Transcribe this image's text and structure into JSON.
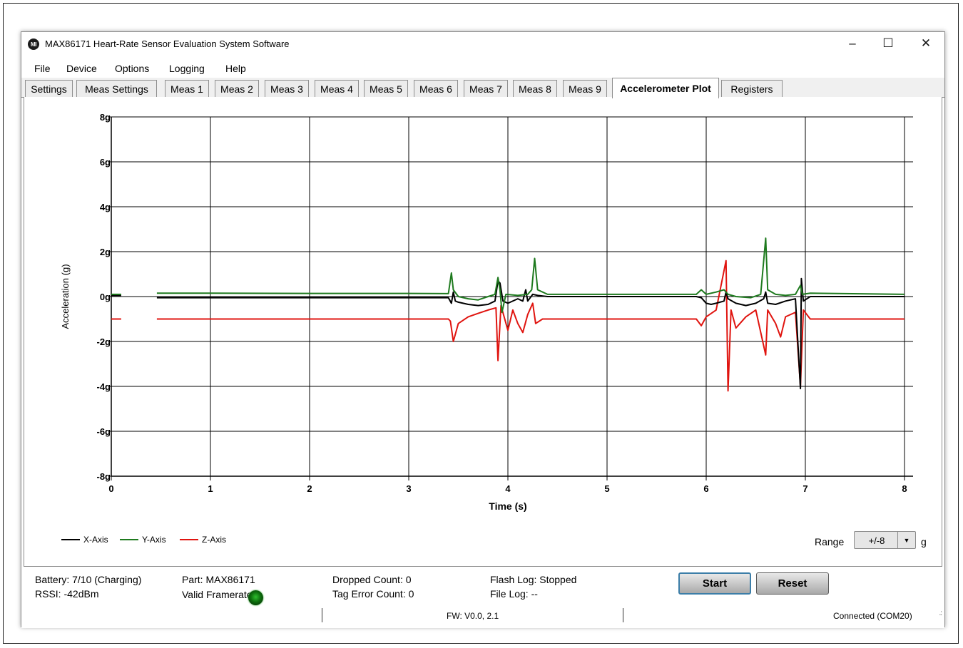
{
  "window": {
    "logo_text": "MI",
    "title": "MAX86171 Heart-Rate Sensor Evaluation System Software",
    "minimize": "–",
    "maximize": "☐",
    "close": "✕"
  },
  "menu": [
    "File",
    "Device",
    "Options",
    "Logging",
    "Help"
  ],
  "tabs": [
    {
      "label": "Settings",
      "active": false
    },
    {
      "label": "Meas Settings",
      "active": false
    },
    {
      "label": "Meas 1",
      "active": false
    },
    {
      "label": "Meas 2",
      "active": false
    },
    {
      "label": "Meas 3",
      "active": false
    },
    {
      "label": "Meas 4",
      "active": false
    },
    {
      "label": "Meas 5",
      "active": false
    },
    {
      "label": "Meas 6",
      "active": false
    },
    {
      "label": "Meas 7",
      "active": false
    },
    {
      "label": "Meas 8",
      "active": false
    },
    {
      "label": "Meas 9",
      "active": false
    },
    {
      "label": "Accelerometer Plot",
      "active": true
    },
    {
      "label": "Registers",
      "active": false
    }
  ],
  "chart_data": {
    "type": "line",
    "title": "",
    "xlabel": "Time (s)",
    "ylabel": "Acceleration (g)",
    "xlim": [
      0,
      8
    ],
    "ylim": [
      -8,
      8
    ],
    "x_ticks": [
      "0",
      "1",
      "2",
      "3",
      "4",
      "5",
      "6",
      "7",
      "8"
    ],
    "y_ticks": [
      "-8g",
      "-6g",
      "-4g",
      "-2g",
      "0g",
      "2g",
      "4g",
      "6g",
      "8g"
    ],
    "grid": true,
    "legend_position": "bottom-left",
    "series": [
      {
        "name": "X-Axis",
        "color": "#000000",
        "segments": [
          [
            [
              0,
              0.05
            ],
            [
              0.1,
              0.05
            ]
          ],
          [
            [
              0.46,
              -0.05
            ],
            [
              1,
              -0.05
            ],
            [
              2,
              -0.05
            ],
            [
              3,
              -0.05
            ],
            [
              3.4,
              -0.05
            ],
            [
              3.43,
              -0.3
            ],
            [
              3.45,
              0.2
            ],
            [
              3.47,
              -0.2
            ],
            [
              3.5,
              -0.25
            ],
            [
              3.6,
              -0.35
            ],
            [
              3.7,
              -0.4
            ],
            [
              3.8,
              -0.35
            ],
            [
              3.87,
              -0.2
            ],
            [
              3.9,
              0.7
            ],
            [
              3.92,
              0.6
            ],
            [
              3.95,
              -0.2
            ],
            [
              4.0,
              -0.3
            ],
            [
              4.1,
              -0.1
            ],
            [
              4.15,
              -0.2
            ],
            [
              4.18,
              0.3
            ],
            [
              4.2,
              -0.2
            ],
            [
              4.25,
              0.1
            ],
            [
              4.3,
              0.05
            ],
            [
              4.4,
              0.0
            ],
            [
              5,
              0.0
            ],
            [
              5.9,
              0.0
            ],
            [
              5.95,
              -0.05
            ],
            [
              6.0,
              -0.3
            ],
            [
              6.05,
              -0.35
            ],
            [
              6.1,
              -0.3
            ],
            [
              6.18,
              -0.2
            ],
            [
              6.2,
              0.2
            ],
            [
              6.22,
              -0.1
            ],
            [
              6.3,
              -0.3
            ],
            [
              6.4,
              -0.4
            ],
            [
              6.5,
              -0.3
            ],
            [
              6.58,
              -0.1
            ],
            [
              6.6,
              0.2
            ],
            [
              6.62,
              -0.3
            ],
            [
              6.7,
              -0.35
            ],
            [
              6.8,
              -0.2
            ],
            [
              6.9,
              -0.1
            ],
            [
              6.95,
              -4.1
            ],
            [
              6.96,
              0.8
            ],
            [
              6.98,
              -0.2
            ],
            [
              7.05,
              0.0
            ],
            [
              8,
              0.0
            ]
          ]
        ]
      },
      {
        "name": "Y-Axis",
        "color": "#1e7a1e",
        "segments": [
          [
            [
              0,
              0.1
            ],
            [
              0.1,
              0.1
            ]
          ],
          [
            [
              0.46,
              0.15
            ],
            [
              1,
              0.15
            ],
            [
              2,
              0.14
            ],
            [
              3,
              0.14
            ],
            [
              3.4,
              0.13
            ],
            [
              3.43,
              1.05
            ],
            [
              3.45,
              0.3
            ],
            [
              3.5,
              0.0
            ],
            [
              3.6,
              -0.1
            ],
            [
              3.7,
              -0.15
            ],
            [
              3.8,
              0.0
            ],
            [
              3.87,
              0.1
            ],
            [
              3.9,
              0.85
            ],
            [
              3.92,
              0.3
            ],
            [
              3.94,
              -0.7
            ],
            [
              3.98,
              0.1
            ],
            [
              4.1,
              0.05
            ],
            [
              4.2,
              0.1
            ],
            [
              4.24,
              0.3
            ],
            [
              4.27,
              1.7
            ],
            [
              4.3,
              0.3
            ],
            [
              4.4,
              0.1
            ],
            [
              5,
              0.1
            ],
            [
              5.9,
              0.1
            ],
            [
              5.95,
              0.3
            ],
            [
              6.0,
              0.1
            ],
            [
              6.1,
              0.2
            ],
            [
              6.18,
              0.3
            ],
            [
              6.22,
              0.1
            ],
            [
              6.3,
              0.0
            ],
            [
              6.45,
              -0.05
            ],
            [
              6.55,
              0.1
            ],
            [
              6.6,
              2.6
            ],
            [
              6.62,
              0.3
            ],
            [
              6.7,
              0.1
            ],
            [
              6.8,
              0.05
            ],
            [
              6.9,
              0.1
            ],
            [
              6.95,
              0.5
            ],
            [
              6.97,
              0.1
            ],
            [
              7.05,
              0.15
            ],
            [
              8,
              0.1
            ]
          ]
        ]
      },
      {
        "name": "Z-Axis",
        "color": "#e0140f",
        "segments": [
          [
            [
              0,
              -1.0
            ],
            [
              0.1,
              -1.0
            ]
          ],
          [
            [
              0.46,
              -1.0
            ],
            [
              1,
              -1.0
            ],
            [
              2,
              -1.0
            ],
            [
              3,
              -1.0
            ],
            [
              3.4,
              -1.0
            ],
            [
              3.42,
              -1.1
            ],
            [
              3.45,
              -2.0
            ],
            [
              3.5,
              -1.2
            ],
            [
              3.6,
              -0.9
            ],
            [
              3.7,
              -0.75
            ],
            [
              3.8,
              -0.6
            ],
            [
              3.88,
              -0.5
            ],
            [
              3.9,
              -2.85
            ],
            [
              3.93,
              -0.4
            ],
            [
              4.0,
              -1.5
            ],
            [
              4.05,
              -0.6
            ],
            [
              4.1,
              -1.2
            ],
            [
              4.15,
              -1.6
            ],
            [
              4.2,
              -0.8
            ],
            [
              4.25,
              -0.3
            ],
            [
              4.28,
              -1.2
            ],
            [
              4.35,
              -1.0
            ],
            [
              5,
              -1.0
            ],
            [
              5.9,
              -1.0
            ],
            [
              5.95,
              -1.3
            ],
            [
              6.0,
              -0.9
            ],
            [
              6.1,
              -0.6
            ],
            [
              6.2,
              1.6
            ],
            [
              6.22,
              -4.2
            ],
            [
              6.25,
              -0.6
            ],
            [
              6.3,
              -1.4
            ],
            [
              6.4,
              -0.9
            ],
            [
              6.5,
              -0.6
            ],
            [
              6.6,
              -2.6
            ],
            [
              6.62,
              -0.6
            ],
            [
              6.7,
              -1.2
            ],
            [
              6.75,
              -1.8
            ],
            [
              6.8,
              -0.9
            ],
            [
              6.9,
              -0.7
            ],
            [
              6.95,
              -4.0
            ],
            [
              6.98,
              -0.6
            ],
            [
              7.05,
              -1.0
            ],
            [
              8,
              -1.0
            ]
          ]
        ]
      }
    ]
  },
  "range": {
    "label": "Range",
    "value": "+/-8",
    "unit": "g",
    "dropdown_icon": "▼"
  },
  "status": {
    "battery": "Battery: 7/10 (Charging)",
    "rssi": "RSSI: -42dBm",
    "part": "Part: MAX86171",
    "valid_framerate": "Valid Framerate:",
    "valid_framerate_color": "#1aa31a",
    "dropped_count": "Dropped Count: 0",
    "tag_error_count": "Tag Error Count: 0",
    "flash_log": "Flash Log: Stopped",
    "file_log": "File Log: --"
  },
  "buttons": {
    "start": "Start",
    "reset": "Reset"
  },
  "statusbar": {
    "fw": "FW: V0.0, 2.1",
    "connection": "Connected (COM20)",
    "grip_icon": ".:"
  }
}
